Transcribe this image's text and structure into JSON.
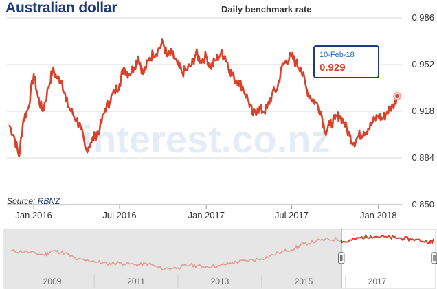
{
  "header": {
    "title": "Australian dollar",
    "subtitle": "Daily benchmark rate"
  },
  "source": {
    "prefix": "Source:",
    "link": "RBNZ"
  },
  "watermark": "interest.co.nz",
  "tooltip": {
    "date": "10-Feb-18",
    "value": "0.929"
  },
  "colors": {
    "series": "#d9412b",
    "title": "#1f3a78",
    "tooltip_date": "#1f6fc4",
    "navigator_shade": "#e6e6e6"
  },
  "chart_data": [
    {
      "type": "line",
      "title": "Daily benchmark rate",
      "series": [
        {
          "x": [
            "2015-11-10",
            "2015-11-20",
            "2015-12-01",
            "2015-12-10",
            "2015-12-20",
            "2016-01-01",
            "2016-01-10",
            "2016-01-20",
            "2016-02-01",
            "2016-02-10",
            "2016-02-20",
            "2016-03-01",
            "2016-03-10",
            "2016-03-20",
            "2016-04-01",
            "2016-04-10",
            "2016-04-20",
            "2016-05-01",
            "2016-05-10",
            "2016-05-20",
            "2016-06-01",
            "2016-06-10",
            "2016-06-20",
            "2016-07-01",
            "2016-07-10",
            "2016-07-20",
            "2016-08-01",
            "2016-08-10",
            "2016-08-20",
            "2016-09-01",
            "2016-09-10",
            "2016-09-20",
            "2016-10-01",
            "2016-10-10",
            "2016-10-20",
            "2016-11-01",
            "2016-11-10",
            "2016-11-20",
            "2016-12-01",
            "2016-12-10",
            "2016-12-20",
            "2017-01-01",
            "2017-01-10",
            "2017-01-20",
            "2017-02-01",
            "2017-02-10",
            "2017-02-20",
            "2017-03-01",
            "2017-03-10",
            "2017-03-20",
            "2017-04-01",
            "2017-04-10",
            "2017-04-20",
            "2017-05-01",
            "2017-05-10",
            "2017-05-20",
            "2017-06-01",
            "2017-06-10",
            "2017-06-20",
            "2017-07-01",
            "2017-07-10",
            "2017-07-20",
            "2017-08-01",
            "2017-08-10",
            "2017-08-20",
            "2017-09-01",
            "2017-09-10",
            "2017-09-20",
            "2017-10-01",
            "2017-10-10",
            "2017-10-20",
            "2017-11-01",
            "2017-11-10",
            "2017-11-20",
            "2017-12-01",
            "2017-12-10",
            "2017-12-20",
            "2018-01-01",
            "2018-01-10",
            "2018-01-20",
            "2018-02-01",
            "2018-02-10"
          ],
          "y": [
            0.908,
            0.9,
            0.885,
            0.912,
            0.92,
            0.945,
            0.928,
            0.918,
            0.935,
            0.948,
            0.942,
            0.94,
            0.925,
            0.918,
            0.912,
            0.905,
            0.89,
            0.895,
            0.9,
            0.905,
            0.92,
            0.925,
            0.932,
            0.938,
            0.95,
            0.945,
            0.95,
            0.958,
            0.945,
            0.955,
            0.96,
            0.962,
            0.968,
            0.958,
            0.96,
            0.952,
            0.946,
            0.948,
            0.952,
            0.96,
            0.955,
            0.958,
            0.95,
            0.955,
            0.96,
            0.958,
            0.948,
            0.942,
            0.94,
            0.935,
            0.925,
            0.915,
            0.92,
            0.918,
            0.92,
            0.93,
            0.935,
            0.95,
            0.955,
            0.958,
            0.953,
            0.95,
            0.935,
            0.928,
            0.925,
            0.918,
            0.903,
            0.908,
            0.912,
            0.915,
            0.91,
            0.9,
            0.895,
            0.9,
            0.903,
            0.905,
            0.91,
            0.915,
            0.912,
            0.918,
            0.922,
            0.929
          ]
        }
      ],
      "ylim": [
        0.85,
        0.986
      ],
      "yticks": [
        "0.986",
        "0.952",
        "0.918",
        "0.884",
        "0.850"
      ],
      "xticks": [
        "Jan 2016",
        "Jul 2016",
        "Jan 2017",
        "Jul 2017",
        "Jan 2018"
      ],
      "grid": true
    },
    {
      "type": "area",
      "series": [
        {
          "x": [
            2008.0,
            2008.4,
            2008.8,
            2009.0,
            2009.3,
            2009.6,
            2010.0,
            2010.3,
            2010.6,
            2011.0,
            2011.3,
            2011.6,
            2012.0,
            2012.3,
            2012.6,
            2013.0,
            2013.3,
            2013.6,
            2014.0,
            2014.4,
            2014.8,
            2015.0,
            2015.4,
            2015.8,
            2016.0,
            2016.3,
            2016.6,
            2017.0,
            2017.3,
            2017.6,
            2018.0,
            2018.1
          ],
          "y": [
            0.88,
            0.875,
            0.86,
            0.88,
            0.87,
            0.835,
            0.828,
            0.815,
            0.82,
            0.81,
            0.815,
            0.79,
            0.795,
            0.81,
            0.8,
            0.805,
            0.82,
            0.83,
            0.84,
            0.87,
            0.895,
            0.915,
            0.935,
            0.94,
            0.925,
            0.945,
            0.955,
            0.95,
            0.945,
            0.94,
            0.925,
            0.929
          ]
        }
      ],
      "xticks": [
        "2009",
        "2011",
        "2013",
        "2015",
        "2017"
      ]
    }
  ]
}
